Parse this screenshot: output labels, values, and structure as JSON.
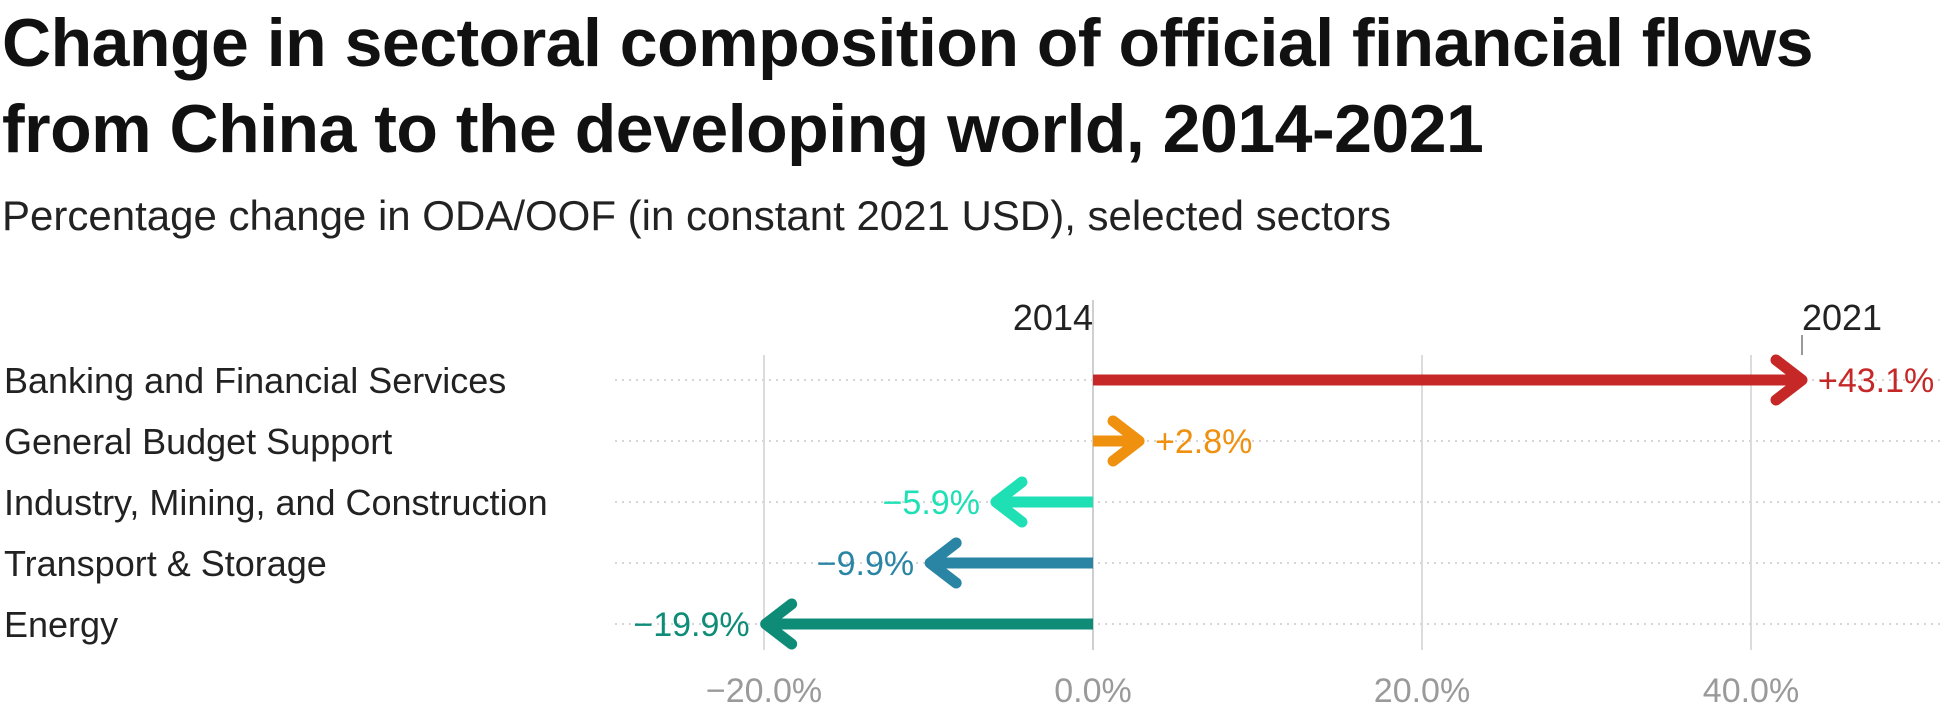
{
  "chart_data": {
    "type": "arrow",
    "title": "Change in sectoral composition of official financial flows from China to the developing world, 2014-2021",
    "subtitle": "Percentage change in ODA/OOF (in constant 2021 USD), selected sectors",
    "start_label": "2014",
    "end_label": "2021",
    "xlim": [
      -29,
      52
    ],
    "x_ticks": [
      {
        "value": -20,
        "label": "−20.0%"
      },
      {
        "value": 0,
        "label": "0.0%"
      },
      {
        "value": 20,
        "label": "20.0%"
      },
      {
        "value": 40,
        "label": "40.0%"
      }
    ],
    "grid": true,
    "categories": [
      "Banking and Financial Services",
      "General Budget Support",
      "Industry, Mining, and Construction",
      "Transport & Storage",
      "Energy"
    ],
    "values": [
      43.1,
      2.8,
      -5.9,
      -9.9,
      -19.9
    ],
    "value_labels": [
      "+43.1%",
      "+2.8%",
      "−5.9%",
      "−9.9%",
      "−19.9%"
    ],
    "colors": [
      "#c62828",
      "#f0900f",
      "#1ee0b4",
      "#2a85a5",
      "#0e8c78"
    ]
  }
}
